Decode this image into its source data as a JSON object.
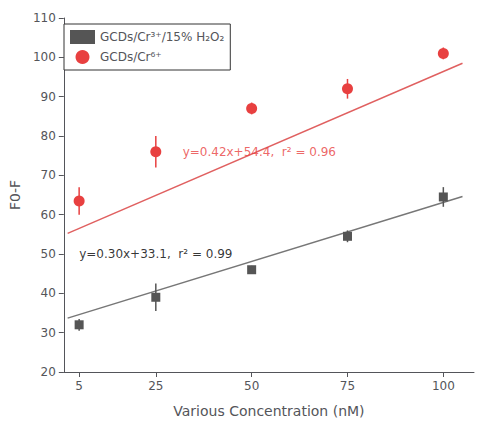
{
  "chart_data": {
    "type": "scatter",
    "xlabel": "Various Concentration (nM)",
    "ylabel": "F0-F",
    "x": [
      5,
      25,
      50,
      75,
      100
    ],
    "xlim": [
      1,
      108
    ],
    "xticks": [
      5,
      25,
      50,
      75,
      100
    ],
    "ylim": [
      20,
      110
    ],
    "yticks": [
      20,
      30,
      40,
      50,
      60,
      70,
      80,
      90,
      100,
      110
    ],
    "grid": false,
    "legend": "upper left",
    "series": [
      {
        "type": "line",
        "color": "#E06060",
        "x": [
          2,
          105
        ],
        "values": [
          55.24,
          98.5
        ]
      },
      {
        "type": "line",
        "color": "#777777",
        "x": [
          2,
          105
        ],
        "values": [
          33.7,
          64.6
        ]
      },
      {
        "name": "GCDs/Cr³⁺/15% H₂O₂",
        "type": "scatter",
        "marker": "square",
        "color": "#555555",
        "values": [
          32.0,
          39.0,
          46.0,
          54.5,
          64.5
        ],
        "errors": [
          1.5,
          3.5,
          1.0,
          1.5,
          2.5
        ]
      },
      {
        "name": "GCDs/Cr⁶⁺",
        "type": "scatter",
        "marker": "circle",
        "color": "#E84040",
        "values": [
          63.5,
          76.0,
          87.0,
          92.0,
          101.0
        ],
        "errors": [
          3.5,
          4.0,
          1.5,
          2.5,
          1.5
        ]
      }
    ],
    "annotations": [
      {
        "text": "y=0.42x+54.4,  r² = 0.96",
        "x": 32,
        "y": 76,
        "color": "#E84040"
      },
      {
        "text": "y=0.30x+33.1,  r² = 0.99",
        "x": 5,
        "y": 50,
        "color": "black"
      }
    ]
  }
}
